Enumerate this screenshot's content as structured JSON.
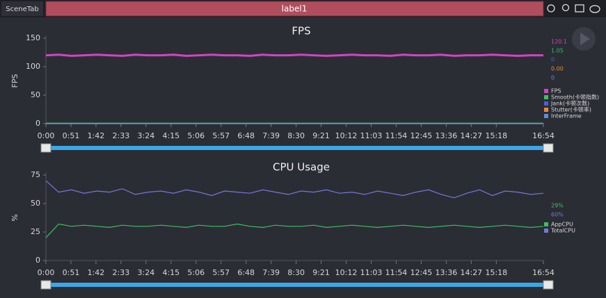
{
  "toolbar": {
    "tab": "SceneTab",
    "label": "label1"
  },
  "chart_data": [
    {
      "type": "line",
      "title": "FPS",
      "y_label": "FPS",
      "x": [
        0,
        26,
        52,
        78,
        104,
        130,
        156,
        182,
        208,
        234,
        260,
        286,
        312,
        338,
        364,
        390,
        416,
        442,
        468,
        494,
        520,
        546,
        572,
        598,
        624,
        650,
        676,
        702,
        728,
        754,
        780,
        806,
        832,
        858,
        884,
        910,
        936,
        962,
        988,
        1014
      ],
      "xlim": [
        0,
        1014
      ],
      "ylim": [
        0,
        150
      ],
      "yticks": [
        0,
        50,
        100,
        150
      ],
      "xticks": [
        {
          "value": 0,
          "label": "0:00"
        },
        {
          "value": 51,
          "label": "0:51"
        },
        {
          "value": 102,
          "label": "1:42"
        },
        {
          "value": 153,
          "label": "2:33"
        },
        {
          "value": 204,
          "label": "3:24"
        },
        {
          "value": 255,
          "label": "4:15"
        },
        {
          "value": 306,
          "label": "5:06"
        },
        {
          "value": 357,
          "label": "5:57"
        },
        {
          "value": 408,
          "label": "6:48"
        },
        {
          "value": 459,
          "label": "7:39"
        },
        {
          "value": 510,
          "label": "8:30"
        },
        {
          "value": 561,
          "label": "9:21"
        },
        {
          "value": 612,
          "label": "10:12"
        },
        {
          "value": 663,
          "label": "11:03"
        },
        {
          "value": 714,
          "label": "11:54"
        },
        {
          "value": 765,
          "label": "12:45"
        },
        {
          "value": 816,
          "label": "13:36"
        },
        {
          "value": 867,
          "label": "14:27"
        },
        {
          "value": 918,
          "label": "15:18"
        },
        {
          "value": 1014,
          "label": "16:54"
        }
      ],
      "series": [
        {
          "name": "FPS",
          "color": "#d444c4",
          "readout": "120.1",
          "values": [
            120,
            121,
            119,
            120,
            121,
            120,
            119,
            121,
            120,
            120,
            121,
            119,
            120,
            121,
            120,
            120,
            119,
            121,
            120,
            120,
            121,
            120,
            119,
            120,
            121,
            120,
            120,
            119,
            121,
            120,
            120,
            121,
            119,
            120,
            120,
            121,
            120,
            119,
            120,
            120
          ]
        },
        {
          "name": "Smooth(卡顿指数)",
          "color": "#3fbf5f",
          "readout": "1.05",
          "values": [
            1,
            1,
            1,
            1,
            1,
            1,
            1,
            1,
            1,
            1,
            1,
            1,
            1,
            1,
            1,
            1,
            1,
            1,
            1,
            1,
            1,
            1,
            1,
            1,
            1,
            1,
            1,
            1,
            1,
            1,
            1,
            1,
            1,
            1,
            1,
            1,
            1,
            1,
            1,
            1
          ]
        },
        {
          "name": "Jank(卡顿次数)",
          "color": "#4a5ee0",
          "readout": "0",
          "values": [
            0,
            0,
            0,
            0,
            0,
            0,
            0,
            0,
            0,
            0,
            0,
            0,
            0,
            0,
            0,
            0,
            0,
            0,
            0,
            0,
            0,
            0,
            0,
            0,
            0,
            0,
            0,
            0,
            0,
            0,
            0,
            0,
            0,
            0,
            0,
            0,
            0,
            0,
            0,
            0
          ]
        },
        {
          "name": "Stutter(卡顿率)",
          "color": "#f08a30",
          "readout": "0.00",
          "values": [
            0,
            0,
            0,
            0,
            0,
            0,
            0,
            0,
            0,
            0,
            0,
            0,
            0,
            0,
            0,
            0,
            0,
            0,
            0,
            0,
            0,
            0,
            0,
            0,
            0,
            0,
            0,
            0,
            0,
            0,
            0,
            0,
            0,
            0,
            0,
            0,
            0,
            0,
            0,
            0
          ]
        },
        {
          "name": "InterFrame",
          "color": "#5b8fe0",
          "readout": "0",
          "values": [
            0,
            0,
            0,
            0,
            0,
            0,
            0,
            0,
            0,
            0,
            0,
            0,
            0,
            0,
            0,
            0,
            0,
            0,
            0,
            0,
            0,
            0,
            0,
            0,
            0,
            0,
            0,
            0,
            0,
            0,
            0,
            0,
            0,
            0,
            0,
            0,
            0,
            0,
            0,
            0
          ]
        }
      ]
    },
    {
      "type": "line",
      "title": "CPU Usage",
      "y_label": "%",
      "x": [
        0,
        26,
        52,
        78,
        104,
        130,
        156,
        182,
        208,
        234,
        260,
        286,
        312,
        338,
        364,
        390,
        416,
        442,
        468,
        494,
        520,
        546,
        572,
        598,
        624,
        650,
        676,
        702,
        728,
        754,
        780,
        806,
        832,
        858,
        884,
        910,
        936,
        962,
        988,
        1014
      ],
      "xlim": [
        0,
        1014
      ],
      "ylim": [
        0,
        75
      ],
      "yticks": [
        0,
        25,
        50,
        75
      ],
      "xticks": [
        {
          "value": 0,
          "label": "0:00"
        },
        {
          "value": 51,
          "label": "0:51"
        },
        {
          "value": 102,
          "label": "1:42"
        },
        {
          "value": 153,
          "label": "2:33"
        },
        {
          "value": 204,
          "label": "3:24"
        },
        {
          "value": 255,
          "label": "4:15"
        },
        {
          "value": 306,
          "label": "5:06"
        },
        {
          "value": 357,
          "label": "5:57"
        },
        {
          "value": 408,
          "label": "6:48"
        },
        {
          "value": 459,
          "label": "7:39"
        },
        {
          "value": 510,
          "label": "8:30"
        },
        {
          "value": 561,
          "label": "9:21"
        },
        {
          "value": 612,
          "label": "10:12"
        },
        {
          "value": 663,
          "label": "11:03"
        },
        {
          "value": 714,
          "label": "11:54"
        },
        {
          "value": 765,
          "label": "12:45"
        },
        {
          "value": 816,
          "label": "13:36"
        },
        {
          "value": 867,
          "label": "14:27"
        },
        {
          "value": 918,
          "label": "15:18"
        },
        {
          "value": 1014,
          "label": "16:54"
        }
      ],
      "series": [
        {
          "name": "AppCPU",
          "color": "#3fbf5f",
          "readout": "29%",
          "values": [
            20,
            32,
            30,
            31,
            30,
            29,
            31,
            30,
            30,
            31,
            30,
            29,
            31,
            30,
            30,
            32,
            30,
            29,
            31,
            30,
            30,
            31,
            29,
            30,
            31,
            30,
            29,
            30,
            31,
            30,
            29,
            30,
            31,
            30,
            29,
            30,
            31,
            30,
            29,
            30
          ]
        },
        {
          "name": "TotalCPU",
          "color": "#7478dc",
          "readout": "60%",
          "values": [
            70,
            60,
            62,
            59,
            61,
            60,
            63,
            58,
            60,
            61,
            59,
            62,
            60,
            57,
            61,
            60,
            59,
            62,
            60,
            58,
            61,
            60,
            62,
            59,
            60,
            58,
            61,
            59,
            57,
            60,
            62,
            58,
            55,
            59,
            62,
            57,
            61,
            60,
            58,
            59
          ]
        }
      ]
    }
  ]
}
